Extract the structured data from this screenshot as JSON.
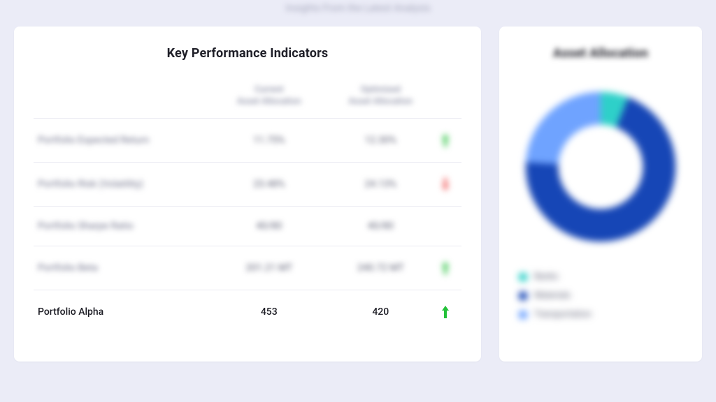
{
  "page": {
    "subtitle": "Insights From the Latest Analysis"
  },
  "kpi_card": {
    "title": "Key Performance Indicators",
    "columns": {
      "metric": "",
      "current_line1": "Current",
      "current_line2": "Asset Allocation",
      "optimized_line1": "Optimized",
      "optimized_line2": "Asset Allocation"
    },
    "rows": [
      {
        "metric": "Portfolio Expected Return",
        "current": "11.75%",
        "optimized": "12.30%",
        "direction": "up",
        "focus": false
      },
      {
        "metric": "Portfolio Risk (Volatility)",
        "current": "23.48%",
        "optimized": "24.13%",
        "direction": "down",
        "focus": false
      },
      {
        "metric": "Portfolio Sharpe Ratio",
        "current": "40/80",
        "optimized": "40/80",
        "direction": "none",
        "focus": false
      },
      {
        "metric": "Portfolio Beta",
        "current": "201.21 MT",
        "optimized": "240.72 MT",
        "direction": "up",
        "focus": false
      },
      {
        "metric": "Portfolio Alpha",
        "current": "453",
        "optimized": "420",
        "direction": "up",
        "focus": true
      }
    ]
  },
  "alloc_card": {
    "title": "Asset Allocation",
    "donut": {
      "type": "donut",
      "inner_radius": 62,
      "outer_radius": 110,
      "background_color": "#ffffff",
      "slices": [
        {
          "label": "Banks",
          "value": 6,
          "color": "#2ed0c9"
        },
        {
          "label": "Materials",
          "value": 70,
          "color": "#1646b6"
        },
        {
          "label": "Transportation",
          "value": 24,
          "color": "#6fa3ff"
        }
      ]
    },
    "legend": [
      {
        "label": "Banks",
        "color": "#2ed0c9"
      },
      {
        "label": "Materials",
        "color": "#1646b6"
      },
      {
        "label": "Transportation",
        "color": "#6fa3ff"
      }
    ]
  },
  "arrow_colors": {
    "up": "#23c139",
    "down": "#f05252"
  }
}
